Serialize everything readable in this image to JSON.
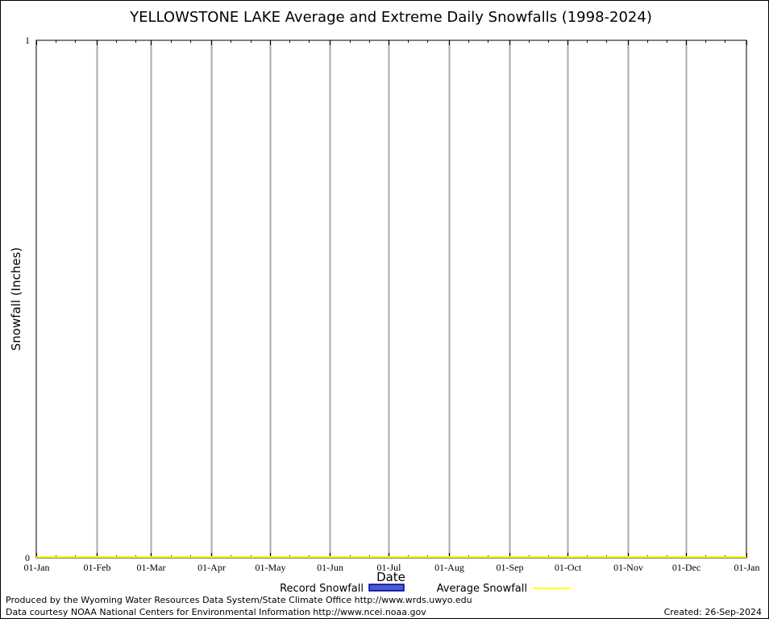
{
  "chart_data": {
    "type": "line",
    "title": "YELLOWSTONE LAKE Average and Extreme Daily Snowfalls (1998-2024)",
    "xlabel": "Date",
    "ylabel": "Snowfall (Inches)",
    "ylim": [
      0,
      1
    ],
    "yticks": [
      "0",
      "1"
    ],
    "xticks": [
      "01-Jan",
      "01-Feb",
      "01-Mar",
      "01-Apr",
      "01-May",
      "01-Jun",
      "01-Jul",
      "01-Aug",
      "01-Sep",
      "01-Oct",
      "01-Nov",
      "01-Dec",
      "01-Jan"
    ],
    "xtick_days": [
      0,
      31,
      59,
      90,
      120,
      151,
      181,
      212,
      243,
      273,
      304,
      334,
      365
    ],
    "grid": "vertical",
    "series": [
      {
        "name": "Record Snowfall",
        "kind": "bar",
        "color": "#0000aa",
        "values": []
      },
      {
        "name": "Average Snowfall",
        "kind": "line",
        "color": "#ffff00",
        "values": [
          0,
          0
        ]
      }
    ],
    "legend_position": "bottom-center"
  },
  "footer": {
    "produced": "Produced by the Wyoming Water Resources Data System/State Climate Office http://www.wrds.uwyo.edu",
    "courtesy": "Data courtesy NOAA National Centers for Environmental Information http://www.ncei.noaa.gov",
    "created": "Created: 26-Sep-2024"
  }
}
